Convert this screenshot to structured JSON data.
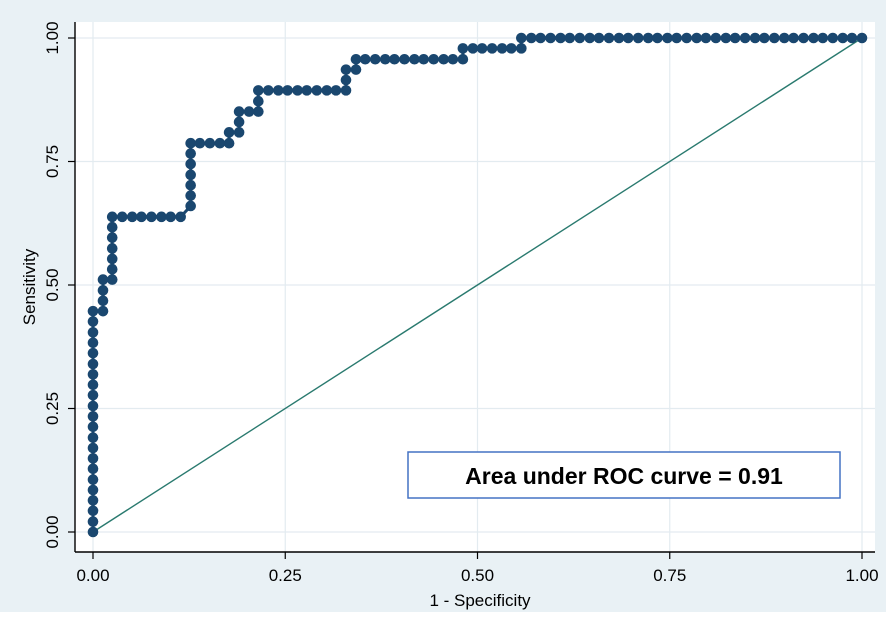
{
  "chart_data": {
    "type": "scatter",
    "xlabel": "1 - Specificity",
    "ylabel": "Sensitivity",
    "xlim": [
      0,
      1
    ],
    "ylim": [
      0,
      1
    ],
    "xticks": [
      "0.00",
      "0.25",
      "0.50",
      "0.75",
      "1.00"
    ],
    "yticks": [
      "0.00",
      "0.25",
      "0.50",
      "0.75",
      "1.00"
    ],
    "grid": true,
    "annotation": "Area under ROC curve = 0.91",
    "reference_line": {
      "x": [
        0,
        1
      ],
      "y": [
        0,
        1
      ]
    },
    "roc_points": [
      [
        0.0,
        0.0
      ],
      [
        0.0,
        0.021
      ],
      [
        0.0,
        0.043
      ],
      [
        0.0,
        0.064
      ],
      [
        0.0,
        0.085
      ],
      [
        0.0,
        0.106
      ],
      [
        0.0,
        0.128
      ],
      [
        0.0,
        0.149
      ],
      [
        0.0,
        0.17
      ],
      [
        0.0,
        0.191
      ],
      [
        0.0,
        0.213
      ],
      [
        0.0,
        0.234
      ],
      [
        0.0,
        0.255
      ],
      [
        0.0,
        0.277
      ],
      [
        0.0,
        0.298
      ],
      [
        0.0,
        0.319
      ],
      [
        0.0,
        0.34
      ],
      [
        0.0,
        0.362
      ],
      [
        0.0,
        0.383
      ],
      [
        0.0,
        0.404
      ],
      [
        0.0,
        0.426
      ],
      [
        0.0,
        0.447
      ],
      [
        0.013,
        0.447
      ],
      [
        0.013,
        0.468
      ],
      [
        0.013,
        0.489
      ],
      [
        0.013,
        0.511
      ],
      [
        0.025,
        0.511
      ],
      [
        0.025,
        0.532
      ],
      [
        0.025,
        0.553
      ],
      [
        0.025,
        0.574
      ],
      [
        0.025,
        0.596
      ],
      [
        0.025,
        0.617
      ],
      [
        0.025,
        0.638
      ],
      [
        0.038,
        0.638
      ],
      [
        0.051,
        0.638
      ],
      [
        0.063,
        0.638
      ],
      [
        0.076,
        0.638
      ],
      [
        0.089,
        0.638
      ],
      [
        0.101,
        0.638
      ],
      [
        0.114,
        0.638
      ],
      [
        0.127,
        0.66
      ],
      [
        0.127,
        0.681
      ],
      [
        0.127,
        0.702
      ],
      [
        0.127,
        0.723
      ],
      [
        0.127,
        0.745
      ],
      [
        0.127,
        0.766
      ],
      [
        0.127,
        0.787
      ],
      [
        0.139,
        0.787
      ],
      [
        0.152,
        0.787
      ],
      [
        0.165,
        0.787
      ],
      [
        0.177,
        0.787
      ],
      [
        0.177,
        0.809
      ],
      [
        0.19,
        0.809
      ],
      [
        0.19,
        0.83
      ],
      [
        0.19,
        0.851
      ],
      [
        0.203,
        0.851
      ],
      [
        0.215,
        0.851
      ],
      [
        0.215,
        0.872
      ],
      [
        0.215,
        0.894
      ],
      [
        0.228,
        0.894
      ],
      [
        0.241,
        0.894
      ],
      [
        0.253,
        0.894
      ],
      [
        0.266,
        0.894
      ],
      [
        0.278,
        0.894
      ],
      [
        0.291,
        0.894
      ],
      [
        0.304,
        0.894
      ],
      [
        0.316,
        0.894
      ],
      [
        0.329,
        0.894
      ],
      [
        0.329,
        0.915
      ],
      [
        0.329,
        0.936
      ],
      [
        0.342,
        0.936
      ],
      [
        0.342,
        0.957
      ],
      [
        0.354,
        0.957
      ],
      [
        0.367,
        0.957
      ],
      [
        0.38,
        0.957
      ],
      [
        0.392,
        0.957
      ],
      [
        0.405,
        0.957
      ],
      [
        0.418,
        0.957
      ],
      [
        0.43,
        0.957
      ],
      [
        0.443,
        0.957
      ],
      [
        0.456,
        0.957
      ],
      [
        0.468,
        0.957
      ],
      [
        0.481,
        0.957
      ],
      [
        0.481,
        0.979
      ],
      [
        0.494,
        0.979
      ],
      [
        0.506,
        0.979
      ],
      [
        0.519,
        0.979
      ],
      [
        0.532,
        0.979
      ],
      [
        0.544,
        0.979
      ],
      [
        0.557,
        0.979
      ],
      [
        0.557,
        1.0
      ],
      [
        0.57,
        1.0
      ],
      [
        0.582,
        1.0
      ],
      [
        0.595,
        1.0
      ],
      [
        0.608,
        1.0
      ],
      [
        0.62,
        1.0
      ],
      [
        0.633,
        1.0
      ],
      [
        0.646,
        1.0
      ],
      [
        0.658,
        1.0
      ],
      [
        0.671,
        1.0
      ],
      [
        0.684,
        1.0
      ],
      [
        0.696,
        1.0
      ],
      [
        0.709,
        1.0
      ],
      [
        0.722,
        1.0
      ],
      [
        0.734,
        1.0
      ],
      [
        0.747,
        1.0
      ],
      [
        0.759,
        1.0
      ],
      [
        0.772,
        1.0
      ],
      [
        0.785,
        1.0
      ],
      [
        0.797,
        1.0
      ],
      [
        0.81,
        1.0
      ],
      [
        0.823,
        1.0
      ],
      [
        0.835,
        1.0
      ],
      [
        0.848,
        1.0
      ],
      [
        0.861,
        1.0
      ],
      [
        0.873,
        1.0
      ],
      [
        0.886,
        1.0
      ],
      [
        0.899,
        1.0
      ],
      [
        0.911,
        1.0
      ],
      [
        0.924,
        1.0
      ],
      [
        0.937,
        1.0
      ],
      [
        0.949,
        1.0
      ],
      [
        0.962,
        1.0
      ],
      [
        0.975,
        1.0
      ],
      [
        0.987,
        1.0
      ],
      [
        1.0,
        1.0
      ]
    ]
  },
  "colors": {
    "outer_background": "#e9f1f5",
    "plot_background": "#ffffff",
    "grid": "#e3ebf0",
    "marker": "#1a476f",
    "reference_line": "#2a7a6f",
    "annotation_border": "#4472c4",
    "axis": "#000000"
  }
}
